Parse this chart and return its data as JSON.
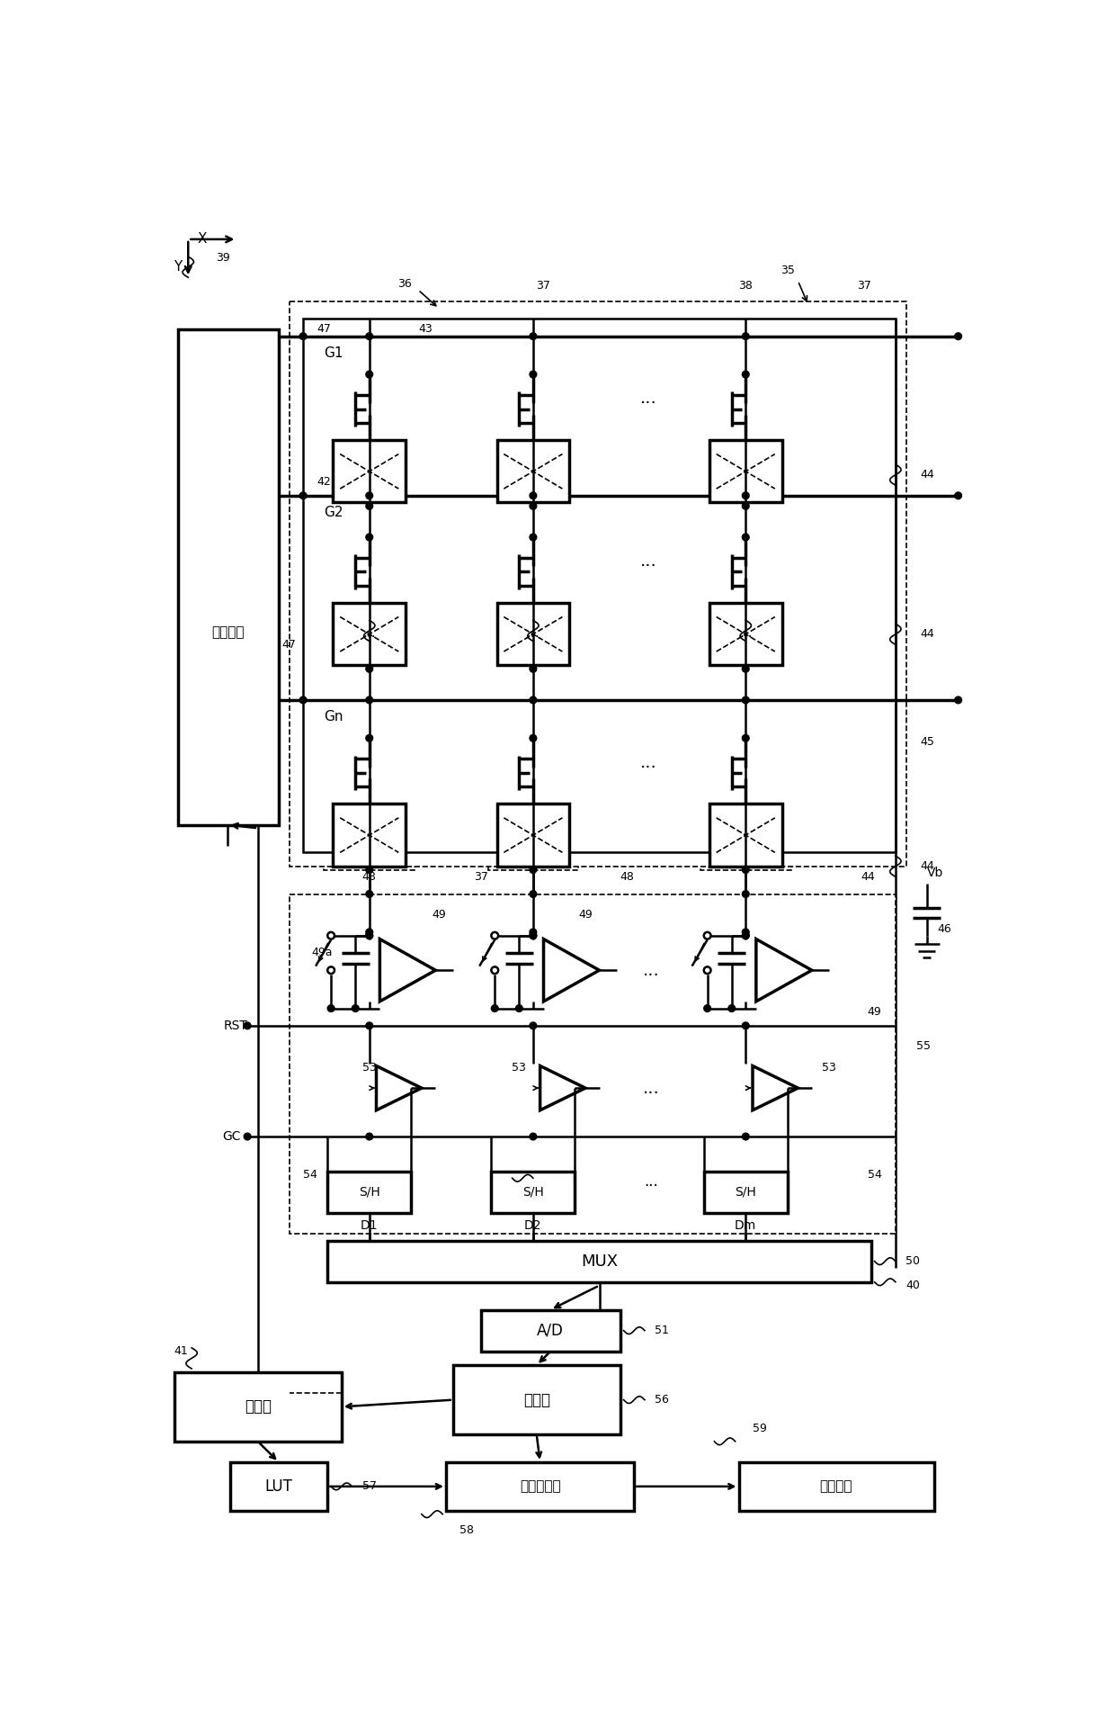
{
  "bg_color": "#ffffff",
  "fig_width": 12.4,
  "fig_height": 19.27,
  "labels": {
    "gate_driver": "门驱动器",
    "G1": "G1",
    "G2": "G2",
    "Gn": "Gn",
    "RST": "RST",
    "GC": "GC",
    "D1": "D1",
    "D2": "D2",
    "Dm": "Dm",
    "MUX": "MUX",
    "AD": "A/D",
    "controller": "控制器",
    "memory": "存储器",
    "LUT": "LUT",
    "image_corrector": "图像校正器",
    "comm_device": "通信装置",
    "Vb": "Vb",
    "SH": "S/H",
    "X": "X",
    "Y": "Y"
  }
}
